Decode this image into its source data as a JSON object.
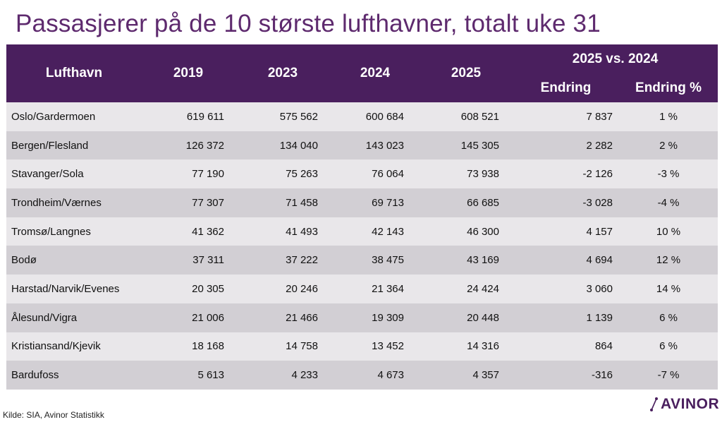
{
  "title": "Passasjerer på de 10 største lufthavner, totalt uke 31",
  "table": {
    "headers": {
      "airport": "Lufthavn",
      "y2019": "2019",
      "y2023": "2023",
      "y2024": "2024",
      "y2025": "2025",
      "comparison": "2025 vs. 2024",
      "change": "Endring",
      "change_pct": "Endring  %"
    },
    "rows": [
      {
        "airport": "Oslo/Gardermoen",
        "y2019": "619 611",
        "y2023": "575 562",
        "y2024": "600 684",
        "y2025": "608 521",
        "change": "7 837",
        "pct": "1 %"
      },
      {
        "airport": "Bergen/Flesland",
        "y2019": "126 372",
        "y2023": "134 040",
        "y2024": "143 023",
        "y2025": "145 305",
        "change": "2 282",
        "pct": "2 %"
      },
      {
        "airport": "Stavanger/Sola",
        "y2019": "77 190",
        "y2023": "75 263",
        "y2024": "76 064",
        "y2025": "73 938",
        "change": "-2 126",
        "pct": "-3 %"
      },
      {
        "airport": "Trondheim/Værnes",
        "y2019": "77 307",
        "y2023": "71 458",
        "y2024": "69 713",
        "y2025": "66 685",
        "change": "-3 028",
        "pct": "-4 %"
      },
      {
        "airport": "Tromsø/Langnes",
        "y2019": "41 362",
        "y2023": "41 493",
        "y2024": "42 143",
        "y2025": "46 300",
        "change": "4 157",
        "pct": "10 %"
      },
      {
        "airport": "Bodø",
        "y2019": "37 311",
        "y2023": "37 222",
        "y2024": "38 475",
        "y2025": "43 169",
        "change": "4 694",
        "pct": "12 %"
      },
      {
        "airport": "Harstad/Narvik/Evenes",
        "y2019": "20 305",
        "y2023": "20 246",
        "y2024": "21 364",
        "y2025": "24 424",
        "change": "3 060",
        "pct": "14 %"
      },
      {
        "airport": "Ålesund/Vigra",
        "y2019": "21 006",
        "y2023": "21 466",
        "y2024": "19 309",
        "y2025": "20 448",
        "change": "1 139",
        "pct": "6 %"
      },
      {
        "airport": "Kristiansand/Kjevik",
        "y2019": "18 168",
        "y2023": "14 758",
        "y2024": "13 452",
        "y2025": "14 316",
        "change": "864",
        "pct": "6 %"
      },
      {
        "airport": "Bardufoss",
        "y2019": "5 613",
        "y2023": "4 233",
        "y2024": "4 673",
        "y2025": "4 357",
        "change": "-316",
        "pct": "-7 %"
      }
    ]
  },
  "source": "Kilde: SIA, Avinor Statistikk",
  "logo": {
    "text": "AVINOR",
    "icon": "avinor-logo-icon"
  },
  "colors": {
    "title": "#5e2a6e",
    "header_bg": "#4a1f5e",
    "row_light": "#e9e7ea",
    "row_dark": "#d2cfd4"
  }
}
